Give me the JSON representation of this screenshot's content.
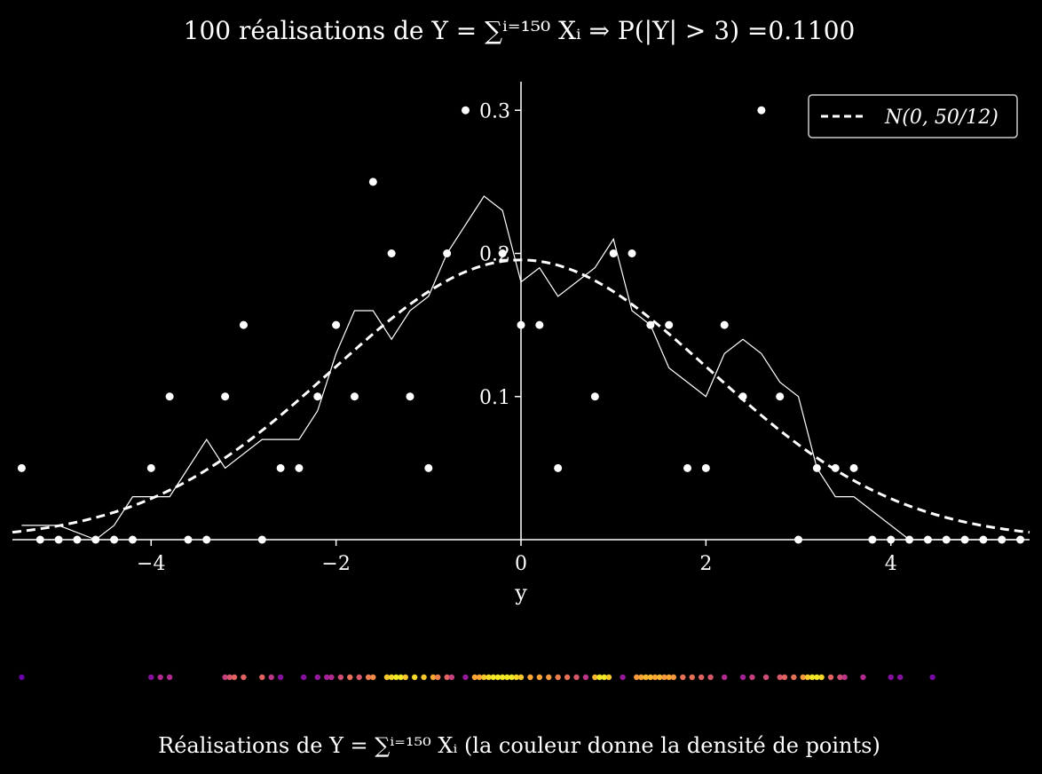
{
  "colors": {
    "background": "#000000",
    "foreground": "#ffffff",
    "density_low": "#6a00a8",
    "density_mid1": "#b12a90",
    "density_mid2": "#e16462",
    "density_mid3": "#fca636",
    "density_high": "#f0f921"
  },
  "chart_data": [
    {
      "type": "scatter+line",
      "title": "100 réalisations de Y = ∑ⁱ⁼¹⁵⁰ Xᵢ ⇒ P(|Y| > 3) =0.1100",
      "xlabel": "y",
      "ylabel": "",
      "xlim": [
        -5.5,
        5.5
      ],
      "ylim": [
        0,
        0.32
      ],
      "xticks": [
        -4,
        -2,
        0,
        2,
        4
      ],
      "xtick_labels": [
        "−4",
        "−2",
        "0",
        "2",
        "4"
      ],
      "yticks": [
        0.1,
        0.2,
        0.3
      ],
      "ytick_labels": [
        "0.1",
        "0.2",
        "0.3"
      ],
      "grid": false,
      "legend_position": "top-right",
      "legend": [
        {
          "label": "N(0, 50/12)",
          "style": "dashed"
        }
      ],
      "series": [
        {
          "name": "N(0, 50/12)",
          "kind": "normal_pdf",
          "mean": 0,
          "variance": 4.1667,
          "style": "dashed"
        },
        {
          "kind": "line",
          "style": "thin",
          "points": [
            [
              -5.4,
              0.01
            ],
            [
              -5.0,
              0.01
            ],
            [
              -4.6,
              0.0
            ],
            [
              -4.4,
              0.01
            ],
            [
              -4.2,
              0.03
            ],
            [
              -3.8,
              0.03
            ],
            [
              -3.6,
              0.05
            ],
            [
              -3.4,
              0.07
            ],
            [
              -3.2,
              0.05
            ],
            [
              -2.8,
              0.07
            ],
            [
              -2.4,
              0.07
            ],
            [
              -2.2,
              0.09
            ],
            [
              -2.0,
              0.13
            ],
            [
              -1.8,
              0.16
            ],
            [
              -1.6,
              0.16
            ],
            [
              -1.4,
              0.14
            ],
            [
              -1.2,
              0.16
            ],
            [
              -1.0,
              0.17
            ],
            [
              -0.8,
              0.2
            ],
            [
              -0.6,
              0.22
            ],
            [
              -0.4,
              0.24
            ],
            [
              -0.2,
              0.23
            ],
            [
              0.0,
              0.18
            ],
            [
              0.2,
              0.19
            ],
            [
              0.4,
              0.17
            ],
            [
              0.6,
              0.18
            ],
            [
              0.8,
              0.19
            ],
            [
              1.0,
              0.21
            ],
            [
              1.2,
              0.16
            ],
            [
              1.4,
              0.15
            ],
            [
              1.6,
              0.12
            ],
            [
              1.8,
              0.11
            ],
            [
              2.0,
              0.1
            ],
            [
              2.2,
              0.13
            ],
            [
              2.4,
              0.14
            ],
            [
              2.6,
              0.13
            ],
            [
              2.8,
              0.11
            ],
            [
              3.0,
              0.1
            ],
            [
              3.2,
              0.05
            ],
            [
              3.4,
              0.03
            ],
            [
              3.6,
              0.03
            ],
            [
              4.2,
              0.0
            ],
            [
              5.4,
              0.0
            ]
          ]
        },
        {
          "kind": "points",
          "points": [
            [
              -5.4,
              0.05
            ],
            [
              -5.2,
              0.0
            ],
            [
              -5.0,
              0.0
            ],
            [
              -4.8,
              0.0
            ],
            [
              -4.6,
              0.0
            ],
            [
              -4.4,
              0.0
            ],
            [
              -4.2,
              0.0
            ],
            [
              -4.0,
              0.05
            ],
            [
              -3.8,
              0.1
            ],
            [
              -3.6,
              0.0
            ],
            [
              -3.4,
              0.0
            ],
            [
              -3.2,
              0.1
            ],
            [
              -3.0,
              0.15
            ],
            [
              -2.8,
              0.0
            ],
            [
              -2.6,
              0.05
            ],
            [
              -2.4,
              0.05
            ],
            [
              -2.2,
              0.1
            ],
            [
              -2.0,
              0.15
            ],
            [
              -1.8,
              0.1
            ],
            [
              -1.6,
              0.25
            ],
            [
              -1.4,
              0.2
            ],
            [
              -1.2,
              0.1
            ],
            [
              -1.0,
              0.05
            ],
            [
              -0.8,
              0.2
            ],
            [
              -0.6,
              0.3
            ],
            [
              -0.2,
              0.2
            ],
            [
              0.0,
              0.15
            ],
            [
              0.2,
              0.15
            ],
            [
              0.4,
              0.05
            ],
            [
              0.8,
              0.1
            ],
            [
              1.0,
              0.2
            ],
            [
              1.2,
              0.2
            ],
            [
              1.4,
              0.15
            ],
            [
              1.6,
              0.15
            ],
            [
              1.8,
              0.05
            ],
            [
              2.0,
              0.05
            ],
            [
              2.2,
              0.15
            ],
            [
              2.4,
              0.1
            ],
            [
              2.6,
              0.3
            ],
            [
              2.8,
              0.1
            ],
            [
              3.0,
              0.0
            ],
            [
              3.2,
              0.05
            ],
            [
              3.4,
              0.05
            ],
            [
              3.6,
              0.05
            ],
            [
              3.8,
              0.0
            ],
            [
              4.0,
              0.0
            ],
            [
              4.2,
              0.0
            ],
            [
              4.4,
              0.0
            ],
            [
              4.6,
              0.0
            ],
            [
              4.8,
              0.0
            ],
            [
              5.0,
              0.0
            ],
            [
              5.2,
              0.0
            ],
            [
              5.4,
              0.0
            ]
          ]
        }
      ]
    },
    {
      "type": "strip",
      "title": "Réalisations de Y = ∑ⁱ⁼¹⁵⁰ Xᵢ (la couleur donne la densité de points)",
      "xlim": [
        -5.5,
        5.5
      ],
      "points": [
        {
          "x": -5.4,
          "density": 0.0
        },
        {
          "x": -4.0,
          "density": 0.1
        },
        {
          "x": -3.9,
          "density": 0.25
        },
        {
          "x": -3.8,
          "density": 0.25
        },
        {
          "x": -3.2,
          "density": 0.35
        },
        {
          "x": -3.15,
          "density": 0.45
        },
        {
          "x": -3.1,
          "density": 0.5
        },
        {
          "x": -3.0,
          "density": 0.5
        },
        {
          "x": -2.8,
          "density": 0.5
        },
        {
          "x": -2.7,
          "density": 0.3
        },
        {
          "x": -2.6,
          "density": 0.1
        },
        {
          "x": -2.35,
          "density": 0.1
        },
        {
          "x": -2.2,
          "density": 0.15
        },
        {
          "x": -2.1,
          "density": 0.2
        },
        {
          "x": -2.05,
          "density": 0.25
        },
        {
          "x": -1.95,
          "density": 0.4
        },
        {
          "x": -1.85,
          "density": 0.55
        },
        {
          "x": -1.75,
          "density": 0.45
        },
        {
          "x": -1.65,
          "density": 0.6
        },
        {
          "x": -1.6,
          "density": 0.65
        },
        {
          "x": -1.45,
          "density": 0.85
        },
        {
          "x": -1.4,
          "density": 0.9
        },
        {
          "x": -1.35,
          "density": 0.95
        },
        {
          "x": -1.3,
          "density": 0.95
        },
        {
          "x": -1.25,
          "density": 0.85
        },
        {
          "x": -1.15,
          "density": 0.9
        },
        {
          "x": -1.05,
          "density": 0.85
        },
        {
          "x": -0.95,
          "density": 0.75
        },
        {
          "x": -0.9,
          "density": 0.6
        },
        {
          "x": -0.8,
          "density": 0.5
        },
        {
          "x": -0.75,
          "density": 0.35
        },
        {
          "x": -0.6,
          "density": 0.15
        },
        {
          "x": -0.5,
          "density": 0.75
        },
        {
          "x": -0.45,
          "density": 0.75
        },
        {
          "x": -0.4,
          "density": 0.85
        },
        {
          "x": -0.35,
          "density": 0.9
        },
        {
          "x": -0.3,
          "density": 0.95
        },
        {
          "x": -0.25,
          "density": 0.95
        },
        {
          "x": -0.2,
          "density": 0.95
        },
        {
          "x": -0.15,
          "density": 0.95
        },
        {
          "x": -0.1,
          "density": 0.95
        },
        {
          "x": -0.05,
          "density": 0.9
        },
        {
          "x": 0.0,
          "density": 0.85
        },
        {
          "x": 0.1,
          "density": 0.75
        },
        {
          "x": 0.2,
          "density": 0.75
        },
        {
          "x": 0.3,
          "density": 0.7
        },
        {
          "x": 0.4,
          "density": 0.6
        },
        {
          "x": 0.5,
          "density": 0.55
        },
        {
          "x": 0.6,
          "density": 0.45
        },
        {
          "x": 0.7,
          "density": 0.3
        },
        {
          "x": 0.8,
          "density": 0.8
        },
        {
          "x": 0.85,
          "density": 0.95
        },
        {
          "x": 0.9,
          "density": 0.95
        },
        {
          "x": 0.95,
          "density": 0.85
        },
        {
          "x": 1.1,
          "density": 0.15
        },
        {
          "x": 1.25,
          "density": 0.7
        },
        {
          "x": 1.3,
          "density": 0.75
        },
        {
          "x": 1.35,
          "density": 0.8
        },
        {
          "x": 1.4,
          "density": 0.8
        },
        {
          "x": 1.45,
          "density": 0.75
        },
        {
          "x": 1.5,
          "density": 0.8
        },
        {
          "x": 1.55,
          "density": 0.7
        },
        {
          "x": 1.6,
          "density": 0.75
        },
        {
          "x": 1.65,
          "density": 0.7
        },
        {
          "x": 1.75,
          "density": 0.55
        },
        {
          "x": 1.85,
          "density": 0.55
        },
        {
          "x": 1.95,
          "density": 0.5
        },
        {
          "x": 2.05,
          "density": 0.45
        },
        {
          "x": 2.2,
          "density": 0.25
        },
        {
          "x": 2.4,
          "density": 0.2
        },
        {
          "x": 2.5,
          "density": 0.35
        },
        {
          "x": 2.65,
          "density": 0.4
        },
        {
          "x": 2.8,
          "density": 0.45
        },
        {
          "x": 2.85,
          "density": 0.5
        },
        {
          "x": 2.95,
          "density": 0.55
        },
        {
          "x": 3.05,
          "density": 0.7
        },
        {
          "x": 3.1,
          "density": 0.85
        },
        {
          "x": 3.15,
          "density": 0.95
        },
        {
          "x": 3.2,
          "density": 0.95
        },
        {
          "x": 3.25,
          "density": 0.9
        },
        {
          "x": 3.35,
          "density": 0.5
        },
        {
          "x": 3.45,
          "density": 0.4
        },
        {
          "x": 3.5,
          "density": 0.3
        },
        {
          "x": 3.7,
          "density": 0.25
        },
        {
          "x": 4.0,
          "density": 0.1
        },
        {
          "x": 4.1,
          "density": 0.1
        },
        {
          "x": 4.45,
          "density": 0.05
        }
      ]
    }
  ]
}
